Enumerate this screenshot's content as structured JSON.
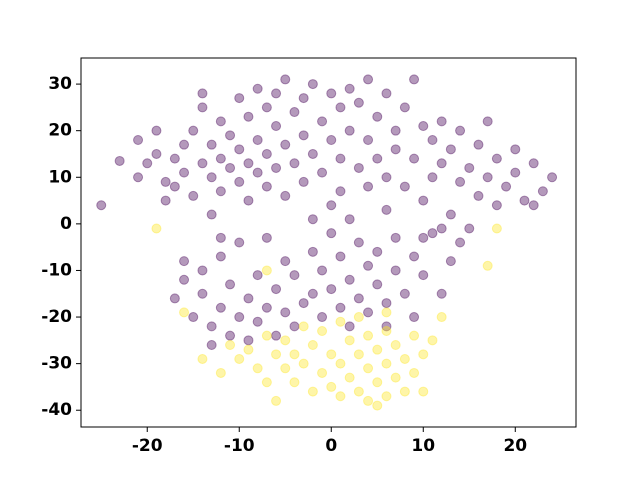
{
  "chart_data": {
    "type": "scatter",
    "xlim": [
      -27.2,
      26.6
    ],
    "ylim": [
      -43.6,
      35.6
    ],
    "xticks": [
      -20,
      -10,
      0,
      10,
      20
    ],
    "yticks": [
      -40,
      -30,
      -20,
      -10,
      0,
      10,
      20,
      30
    ],
    "alpha": 0.4,
    "series": [
      {
        "color": "#440154",
        "x": [
          -25,
          -23,
          -21,
          -21,
          -20,
          -19,
          -19,
          -18,
          -18,
          -17,
          -17,
          -16,
          -16,
          -15,
          -15,
          -14,
          -14,
          -14,
          -13,
          -13,
          -13,
          -12,
          -12,
          -12,
          -11,
          -11,
          -10,
          -10,
          -10,
          -9,
          -9,
          -9,
          -8,
          -8,
          -8,
          -7,
          -7,
          -7,
          -6,
          -6,
          -6,
          -5,
          -5,
          -5,
          -4,
          -4,
          -3,
          -3,
          -3,
          -2,
          -2,
          -2,
          -1,
          -1,
          0,
          0,
          0,
          1,
          1,
          1,
          2,
          2,
          2,
          3,
          3,
          4,
          4,
          4,
          5,
          5,
          6,
          6,
          6,
          7,
          7,
          8,
          8,
          9,
          9,
          10,
          10,
          11,
          11,
          12,
          12,
          13,
          13,
          14,
          14,
          15,
          15,
          16,
          16,
          17,
          17,
          18,
          18,
          19,
          20,
          20,
          21,
          22,
          23,
          24,
          22,
          -12,
          10,
          12,
          -16,
          -16,
          -15,
          -14,
          -14,
          -13,
          -12,
          -12,
          -11,
          -11,
          -10,
          -10,
          -9,
          -9,
          -8,
          -8,
          -7,
          -7,
          -6,
          -6,
          -5,
          -5,
          -4,
          -4,
          -3,
          -2,
          -2,
          -1,
          -1,
          0,
          0,
          1,
          1,
          2,
          2,
          3,
          3,
          4,
          4,
          5,
          5,
          6,
          7,
          7,
          8,
          9,
          9,
          10,
          11,
          12,
          13,
          14,
          -17,
          -13,
          6
        ],
        "y": [
          4,
          13.5,
          18,
          10,
          13,
          20,
          15,
          9,
          5,
          14,
          8,
          17,
          11,
          6,
          20,
          13,
          25,
          28,
          17,
          10,
          2,
          22,
          14,
          7,
          19,
          12,
          27,
          16,
          9,
          23,
          5,
          13,
          29,
          18,
          11,
          25,
          15,
          8,
          28,
          21,
          12,
          31,
          17,
          6,
          24,
          13,
          27,
          19,
          9,
          30,
          15,
          1,
          22,
          11,
          28,
          18,
          4,
          25,
          14,
          7,
          29,
          20,
          1,
          26,
          12,
          31,
          18,
          8,
          23,
          14,
          28,
          10,
          3,
          20,
          16,
          25,
          8,
          31,
          14,
          21,
          5,
          18,
          10,
          22,
          13,
          16,
          2,
          20,
          9,
          12,
          -1,
          17,
          6,
          22,
          10,
          14,
          4,
          8,
          16,
          11,
          5,
          13,
          7,
          10,
          4,
          -3,
          -3,
          -1,
          -8,
          -12,
          -20,
          -15,
          -10,
          -22,
          -18,
          -7,
          -24,
          -13,
          -20,
          -4,
          -16,
          -25,
          -11,
          -21,
          -18,
          -3,
          -14,
          -24,
          -19,
          -8,
          -22,
          -11,
          -17,
          -15,
          -6,
          -20,
          -10,
          -2,
          -14,
          -18,
          -7,
          -12,
          -22,
          -16,
          -4,
          -9,
          -19,
          -13,
          -6,
          -17,
          -10,
          -3,
          -15,
          -7,
          -20,
          -11,
          -2,
          -15,
          -8,
          -4,
          -16,
          -26,
          -22
        ]
      },
      {
        "color": "#fde725",
        "x": [
          -19,
          18,
          17,
          -7,
          -14,
          -12,
          -11,
          -10,
          -9,
          -8,
          -7,
          -7,
          -6,
          -5,
          -5,
          -4,
          -4,
          -3,
          -3,
          -2,
          -2,
          -1,
          -1,
          0,
          0,
          1,
          1,
          1,
          2,
          2,
          3,
          3,
          3,
          4,
          4,
          4,
          5,
          5,
          5,
          6,
          6,
          6,
          7,
          7,
          8,
          8,
          9,
          9,
          10,
          10,
          11,
          12,
          -16,
          -6,
          6
        ],
        "y": [
          -1,
          -1,
          -9,
          -10,
          -29,
          -32,
          -26,
          -29,
          -27,
          -31,
          -24,
          -34,
          -28,
          -31,
          -25,
          -34,
          -28,
          -22,
          -30,
          -36,
          -26,
          -32,
          -23,
          -28,
          -35,
          -21,
          -30,
          -37,
          -25,
          -33,
          -28,
          -36,
          -20,
          -31,
          -38,
          -24,
          -34,
          -27,
          -39,
          -30,
          -23,
          -37,
          -33,
          -26,
          -29,
          -36,
          -32,
          -24,
          -28,
          -36,
          -25,
          -20,
          -19,
          -38,
          -19
        ]
      }
    ]
  }
}
